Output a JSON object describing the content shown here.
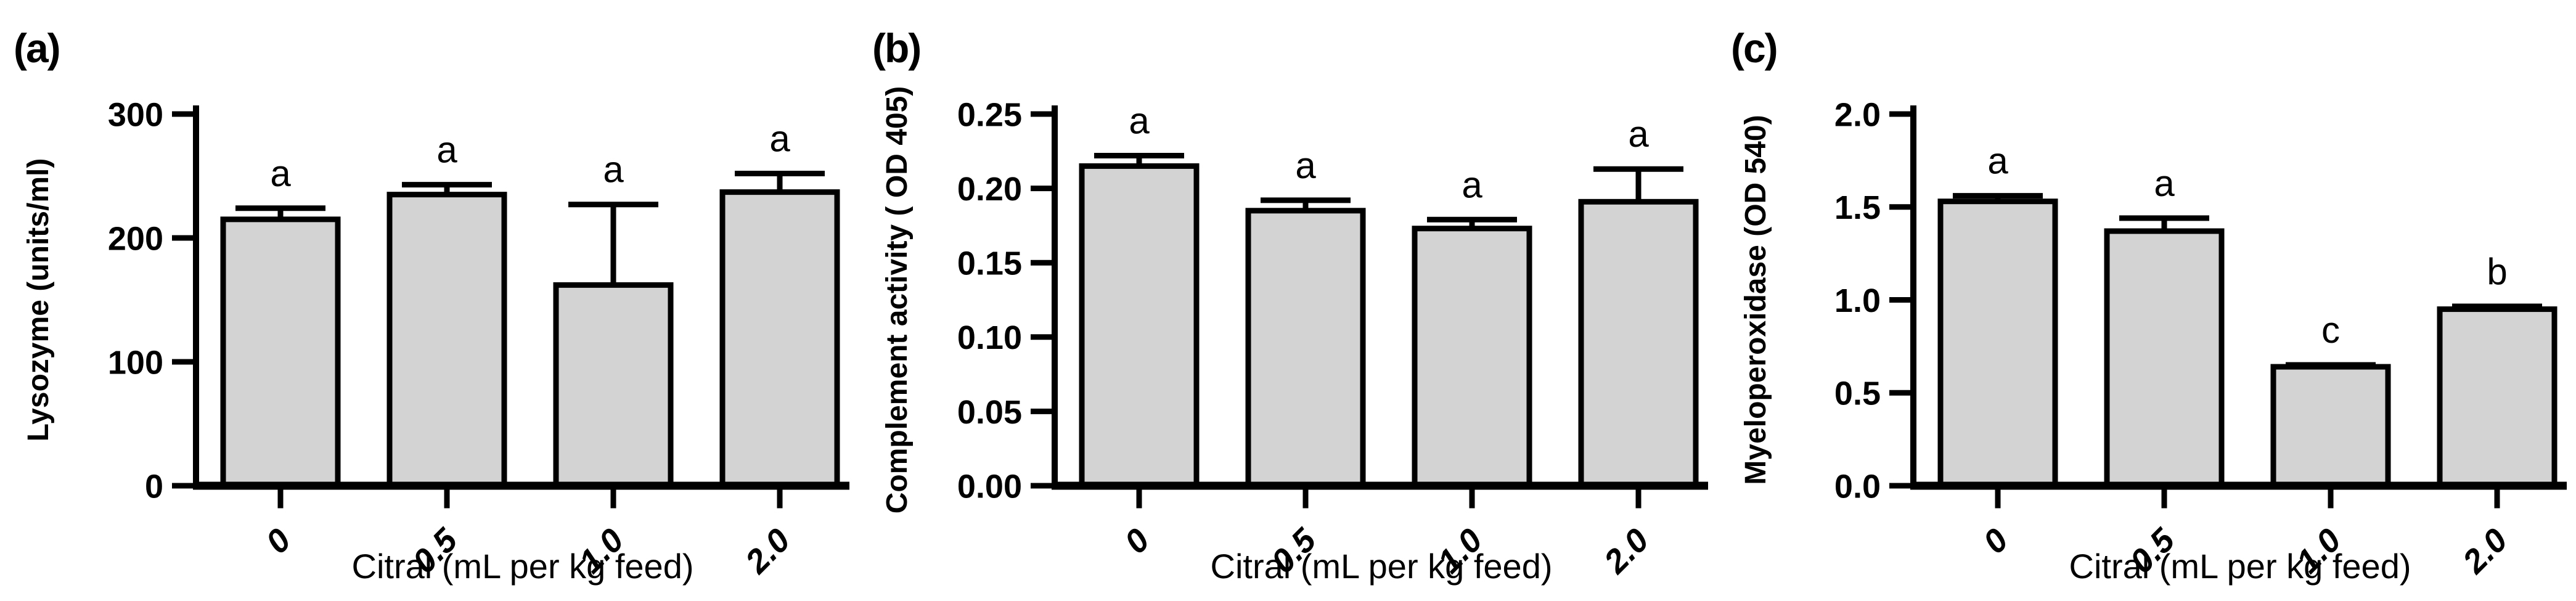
{
  "figure": {
    "background": "#ffffff",
    "shared_x_axis_label": "Citral (mL per kg feed)",
    "categories": [
      "0",
      "0.5",
      "1.0",
      "2.0"
    ]
  },
  "chart_data": [
    {
      "type": "bar",
      "panel_label": "(a)",
      "ylabel": "Lysozyme (units/ml)",
      "xlabel": "Citral (mL per kg feed)",
      "categories": [
        "0",
        "0.5",
        "1.0",
        "2.0"
      ],
      "values": [
        215,
        235,
        162,
        237
      ],
      "errors_plus": [
        9,
        8,
        65,
        15
      ],
      "sig_letters": [
        "a",
        "a",
        "a",
        "a"
      ],
      "ylim": [
        0,
        300
      ],
      "yticks": [
        0,
        100,
        200,
        300
      ],
      "ytick_labels": [
        "0",
        "100",
        "200",
        "300"
      ],
      "grid": false,
      "legend": "none",
      "bar_fill": "#d3d3d3",
      "bar_stroke": "#000000"
    },
    {
      "type": "bar",
      "panel_label": "(b)",
      "ylabel": "Complement activity ( OD 405)",
      "xlabel": "Citral (mL per kg feed)",
      "categories": [
        "0",
        "0.5",
        "1.0",
        "2.0"
      ],
      "values": [
        0.215,
        0.185,
        0.173,
        0.191
      ],
      "errors_plus": [
        0.007,
        0.007,
        0.006,
        0.022
      ],
      "sig_letters": [
        "a",
        "a",
        "a",
        "a"
      ],
      "ylim": [
        0,
        0.25
      ],
      "yticks": [
        0,
        0.05,
        0.1,
        0.15,
        0.2,
        0.25
      ],
      "ytick_labels": [
        "0.00",
        "0.05",
        "0.10",
        "0.15",
        "0.20",
        "0.25"
      ],
      "grid": false,
      "legend": "none",
      "bar_fill": "#d3d3d3",
      "bar_stroke": "#000000"
    },
    {
      "type": "bar",
      "panel_label": "(c)",
      "ylabel": "Myeloperoxidase (OD 540)",
      "xlabel": "Citral (mL per kg feed)",
      "categories": [
        "0",
        "0.5",
        "1.0",
        "2.0"
      ],
      "values": [
        1.53,
        1.37,
        0.64,
        0.95
      ],
      "errors_plus": [
        0.03,
        0.07,
        0.01,
        0.015
      ],
      "sig_letters": [
        "a",
        "a",
        "c",
        "b"
      ],
      "ylim": [
        0,
        2.0
      ],
      "yticks": [
        0,
        0.5,
        1.0,
        1.5,
        2.0
      ],
      "ytick_labels": [
        "0.0",
        "0.5",
        "1.0",
        "1.5",
        "2.0"
      ],
      "grid": false,
      "legend": "none",
      "bar_fill": "#d3d3d3",
      "bar_stroke": "#000000"
    }
  ]
}
